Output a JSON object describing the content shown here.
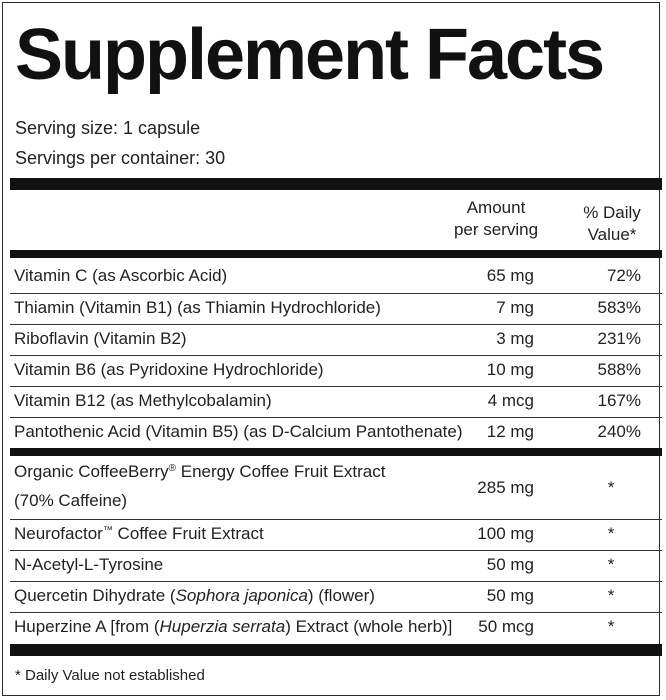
{
  "title": "Supplement Facts",
  "serving_size": "Serving size: 1 capsule",
  "servings_per_container": "Servings per container: 30",
  "columns": {
    "amount": [
      "Amount",
      "per serving"
    ],
    "daily_value": [
      "% Daily",
      "Value*"
    ]
  },
  "vitamins": [
    {
      "name": "Vitamin C (as Ascorbic Acid)",
      "amount": "65 mg",
      "dv": "72%"
    },
    {
      "name": "Thiamin (Vitamin B1) (as Thiamin Hydrochloride)",
      "amount": "7 mg",
      "dv": "583%"
    },
    {
      "name": "Riboflavin (Vitamin B2)",
      "amount": "3 mg",
      "dv": "231%"
    },
    {
      "name": "Vitamin B6 (as Pyridoxine Hydrochloride)",
      "amount": "10 mg",
      "dv": "588%"
    },
    {
      "name": "Vitamin B12 (as Methylcobalamin)",
      "amount": "4 mcg",
      "dv": "167%"
    },
    {
      "name": "Pantothenic Acid (Vitamin B5) (as D-Calcium Pantothenate)",
      "amount": "12 mg",
      "dv": "240%"
    }
  ],
  "other": {
    "coffeeberry": {
      "name_part1": "Organic CoffeeBerry",
      "mark": "®",
      "name_part2": " Energy Coffee Fruit Extract",
      "name_line2": "(70% Caffeine)",
      "amount": "285 mg",
      "dv": "*"
    },
    "neurofactor": {
      "name_part1": "Neurofactor",
      "mark": "™",
      "name_part2": " Coffee Fruit Extract",
      "amount": "100 mg",
      "dv": "*"
    },
    "tyrosine": {
      "name": "N-Acetyl-L-Tyrosine",
      "amount": "50 mg",
      "dv": "*"
    },
    "quercetin": {
      "name_part1": "Quercetin Dihydrate (",
      "name_italic": "Sophora japonica",
      "name_part2": ") (flower)",
      "amount": "50 mg",
      "dv": "*"
    },
    "huperzine": {
      "name_part1": "Huperzine A [from (",
      "name_italic": "Huperzia serrata",
      "name_part2": ") Extract (whole herb)]",
      "amount": "50 mcg",
      "dv": "*"
    }
  },
  "footnote": "* Daily Value not established"
}
